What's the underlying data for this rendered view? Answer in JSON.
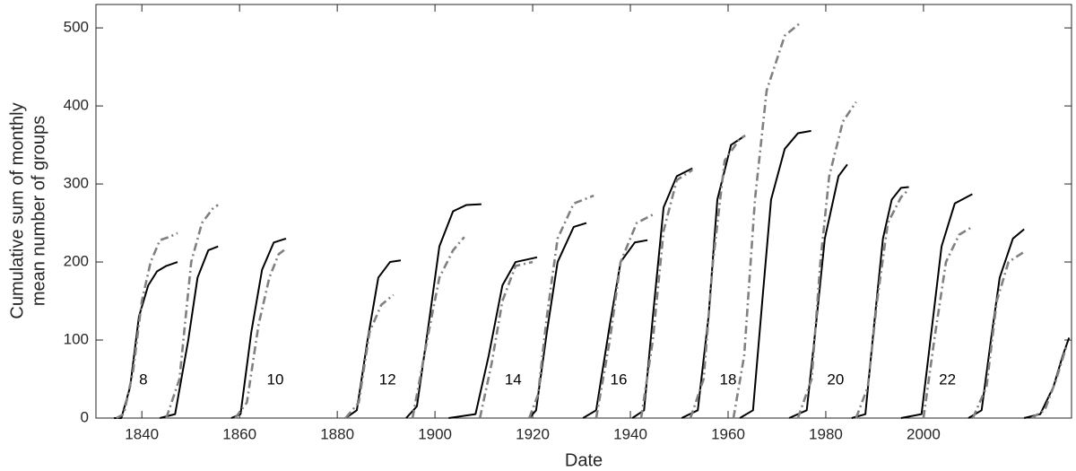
{
  "chart_data": {
    "type": "line",
    "xlabel": "Date",
    "ylabel": [
      "Cumulative sum of monthly",
      "mean number of groups"
    ],
    "xlim": [
      1830.6,
      2030.3
    ],
    "ylim": [
      0,
      530
    ],
    "xticks": [
      1840,
      1860,
      1880,
      1900,
      1920,
      1940,
      1960,
      1980,
      2000
    ],
    "yticks": [
      0,
      100,
      200,
      300,
      400,
      500
    ],
    "grid": false,
    "series": [
      {
        "color": "#000000",
        "style": "solid",
        "x": [
          1834.3,
          1835.8,
          1837.6,
          1839.4,
          1841.3,
          1843.1,
          1845.0,
          1847.3
        ],
        "values": [
          0,
          0,
          40,
          130,
          170,
          188,
          195,
          200
        ]
      },
      {
        "color": "#808080",
        "style": "dashdot",
        "x": [
          1834.8,
          1836.3,
          1838.2,
          1840.0,
          1841.8,
          1843.7,
          1845.6,
          1847.3
        ],
        "values": [
          0,
          5,
          60,
          150,
          200,
          228,
          232,
          237
        ]
      },
      {
        "color": "#000000",
        "style": "solid",
        "x": [
          1843.7,
          1846.8,
          1849.5,
          1851.4,
          1853.6,
          1855.6
        ],
        "values": [
          0,
          5,
          100,
          180,
          215,
          220
        ]
      },
      {
        "color": "#808080",
        "style": "dashdot",
        "x": [
          1845.0,
          1847.7,
          1850.1,
          1852.3,
          1854.7,
          1855.6
        ],
        "values": [
          0,
          50,
          200,
          250,
          270,
          273
        ]
      },
      {
        "color": "#000000",
        "style": "solid",
        "x": [
          1858.3,
          1860.2,
          1862.4,
          1864.6,
          1867.0,
          1869.5
        ],
        "values": [
          0,
          5,
          110,
          190,
          225,
          230
        ]
      },
      {
        "color": "#808080",
        "style": "dashdot",
        "x": [
          1859.1,
          1861.5,
          1863.9,
          1866.1,
          1868.0,
          1869.5
        ],
        "values": [
          0,
          20,
          120,
          180,
          210,
          217
        ]
      },
      {
        "color": "#000000",
        "style": "solid",
        "x": [
          1881.7,
          1884.0,
          1886.2,
          1888.4,
          1890.8,
          1893.0
        ],
        "values": [
          0,
          10,
          100,
          180,
          200,
          202
        ]
      },
      {
        "color": "#808080",
        "style": "dashdot",
        "x": [
          1881.7,
          1884.4,
          1886.6,
          1889.0,
          1891.5
        ],
        "values": [
          0,
          20,
          110,
          145,
          158
        ]
      },
      {
        "color": "#000000",
        "style": "solid",
        "x": [
          1894.1,
          1896.3,
          1898.7,
          1900.9,
          1903.7,
          1906.4,
          1909.5
        ],
        "values": [
          0,
          15,
          120,
          220,
          265,
          273,
          274
        ]
      },
      {
        "color": "#808080",
        "style": "dashdot",
        "x": [
          1895.4,
          1898.7,
          1900.9,
          1903.7,
          1906.0
        ],
        "values": [
          0,
          110,
          180,
          215,
          232
        ]
      },
      {
        "color": "#000000",
        "style": "solid",
        "x": [
          1902.8,
          1908.3,
          1911.0,
          1913.8,
          1916.5,
          1920.9
        ],
        "values": [
          0,
          5,
          80,
          170,
          200,
          206
        ]
      },
      {
        "color": "#808080",
        "style": "dashdot",
        "x": [
          1909.2,
          1911.6,
          1913.8,
          1916.5,
          1920.0
        ],
        "values": [
          0,
          70,
          150,
          195,
          200
        ]
      },
      {
        "color": "#000000",
        "style": "solid",
        "x": [
          1919.3,
          1920.7,
          1922.9,
          1925.1,
          1928.4,
          1931.0
        ],
        "values": [
          0,
          10,
          110,
          200,
          245,
          250
        ]
      },
      {
        "color": "#808080",
        "style": "dashdot",
        "x": [
          1919.3,
          1921.1,
          1922.9,
          1925.1,
          1928.4,
          1932.5
        ],
        "values": [
          0,
          30,
          130,
          230,
          275,
          285
        ]
      },
      {
        "color": "#000000",
        "style": "solid",
        "x": [
          1930.3,
          1933.0,
          1935.8,
          1938.0,
          1940.9,
          1943.5
        ],
        "values": [
          0,
          10,
          120,
          200,
          225,
          228
        ]
      },
      {
        "color": "#808080",
        "style": "dashdot",
        "x": [
          1933.0,
          1935.8,
          1938.0,
          1941.3,
          1945.0
        ],
        "values": [
          0,
          100,
          200,
          250,
          262
        ]
      },
      {
        "color": "#000000",
        "style": "solid",
        "x": [
          1940.4,
          1942.8,
          1944.6,
          1946.8,
          1949.5,
          1952.7
        ],
        "values": [
          0,
          10,
          130,
          270,
          310,
          320
        ]
      },
      {
        "color": "#808080",
        "style": "dashdot",
        "x": [
          1942.2,
          1944.6,
          1946.8,
          1949.5,
          1952.7
        ],
        "values": [
          0,
          100,
          240,
          305,
          318
        ]
      },
      {
        "color": "#000000",
        "style": "solid",
        "x": [
          1950.5,
          1953.8,
          1956.0,
          1957.8,
          1960.6,
          1963.5
        ],
        "values": [
          0,
          10,
          130,
          280,
          350,
          362
        ]
      },
      {
        "color": "#808080",
        "style": "dashdot",
        "x": [
          1952.3,
          1955.0,
          1956.9,
          1959.3,
          1962.4,
          1963.5
        ],
        "values": [
          0,
          50,
          200,
          330,
          358,
          362
        ]
      },
      {
        "color": "#000000",
        "style": "solid",
        "x": [
          1962.4,
          1965.1,
          1967.0,
          1968.8,
          1971.6,
          1974.3,
          1977.0
        ],
        "values": [
          0,
          10,
          150,
          280,
          345,
          365,
          368
        ]
      },
      {
        "color": "#808080",
        "style": "dashdot",
        "x": [
          1961.1,
          1963.3,
          1965.5,
          1967.9,
          1971.6,
          1974.5
        ],
        "values": [
          0,
          80,
          280,
          420,
          490,
          505
        ]
      },
      {
        "color": "#000000",
        "style": "solid",
        "x": [
          1972.5,
          1976.1,
          1978.0,
          1979.8,
          1982.6,
          1984.4
        ],
        "values": [
          0,
          10,
          120,
          230,
          310,
          325
        ]
      },
      {
        "color": "#808080",
        "style": "dashdot",
        "x": [
          1974.3,
          1977.1,
          1978.9,
          1980.7,
          1983.5,
          1986.2
        ],
        "values": [
          0,
          50,
          200,
          310,
          380,
          405
        ]
      },
      {
        "color": "#000000",
        "style": "solid",
        "x": [
          1985.3,
          1988.1,
          1989.9,
          1991.7,
          1993.5,
          1995.4,
          1997.0
        ],
        "values": [
          0,
          5,
          120,
          230,
          280,
          295,
          296
        ]
      },
      {
        "color": "#808080",
        "style": "dashdot",
        "x": [
          1986.2,
          1988.6,
          1990.5,
          1992.7,
          1995.4,
          1996.5
        ],
        "values": [
          0,
          40,
          150,
          250,
          283,
          290
        ]
      },
      {
        "color": "#000000",
        "style": "solid",
        "x": [
          1995.4,
          1999.6,
          2001.8,
          2003.7,
          2006.4,
          2010.0
        ],
        "values": [
          0,
          5,
          120,
          220,
          275,
          287
        ]
      },
      {
        "color": "#808080",
        "style": "dashdot",
        "x": [
          2000.0,
          2002.2,
          2004.6,
          2007.3,
          2010.0
        ],
        "values": [
          0,
          100,
          200,
          235,
          245
        ]
      },
      {
        "color": "#000000",
        "style": "solid",
        "x": [
          2009.2,
          2011.9,
          2013.8,
          2015.6,
          2018.3,
          2020.6
        ],
        "values": [
          0,
          10,
          100,
          180,
          230,
          242
        ]
      },
      {
        "color": "#808080",
        "style": "dashdot",
        "x": [
          2010.1,
          2012.9,
          2015.0,
          2017.4,
          2020.6
        ],
        "values": [
          0,
          40,
          150,
          200,
          213
        ]
      },
      {
        "color": "#000000",
        "style": "solid",
        "x": [
          2020.6,
          2023.9,
          2026.6,
          2028.5,
          2029.8
        ],
        "values": [
          0,
          5,
          40,
          80,
          103
        ]
      },
      {
        "color": "#808080",
        "style": "dashdot",
        "x": [
          2022.1,
          2024.8,
          2027.2,
          2029.4
        ],
        "values": [
          0,
          10,
          50,
          95
        ]
      }
    ],
    "annotations": [
      {
        "text": "8",
        "x": 1840.3,
        "y": 48
      },
      {
        "text": "10",
        "x": 1867.3,
        "y": 48
      },
      {
        "text": "12",
        "x": 1890.3,
        "y": 48
      },
      {
        "text": "14",
        "x": 1916.0,
        "y": 48
      },
      {
        "text": "16",
        "x": 1937.6,
        "y": 48
      },
      {
        "text": "18",
        "x": 1960.0,
        "y": 48
      },
      {
        "text": "20",
        "x": 1982.0,
        "y": 48
      },
      {
        "text": "22",
        "x": 2004.9,
        "y": 48
      }
    ]
  }
}
